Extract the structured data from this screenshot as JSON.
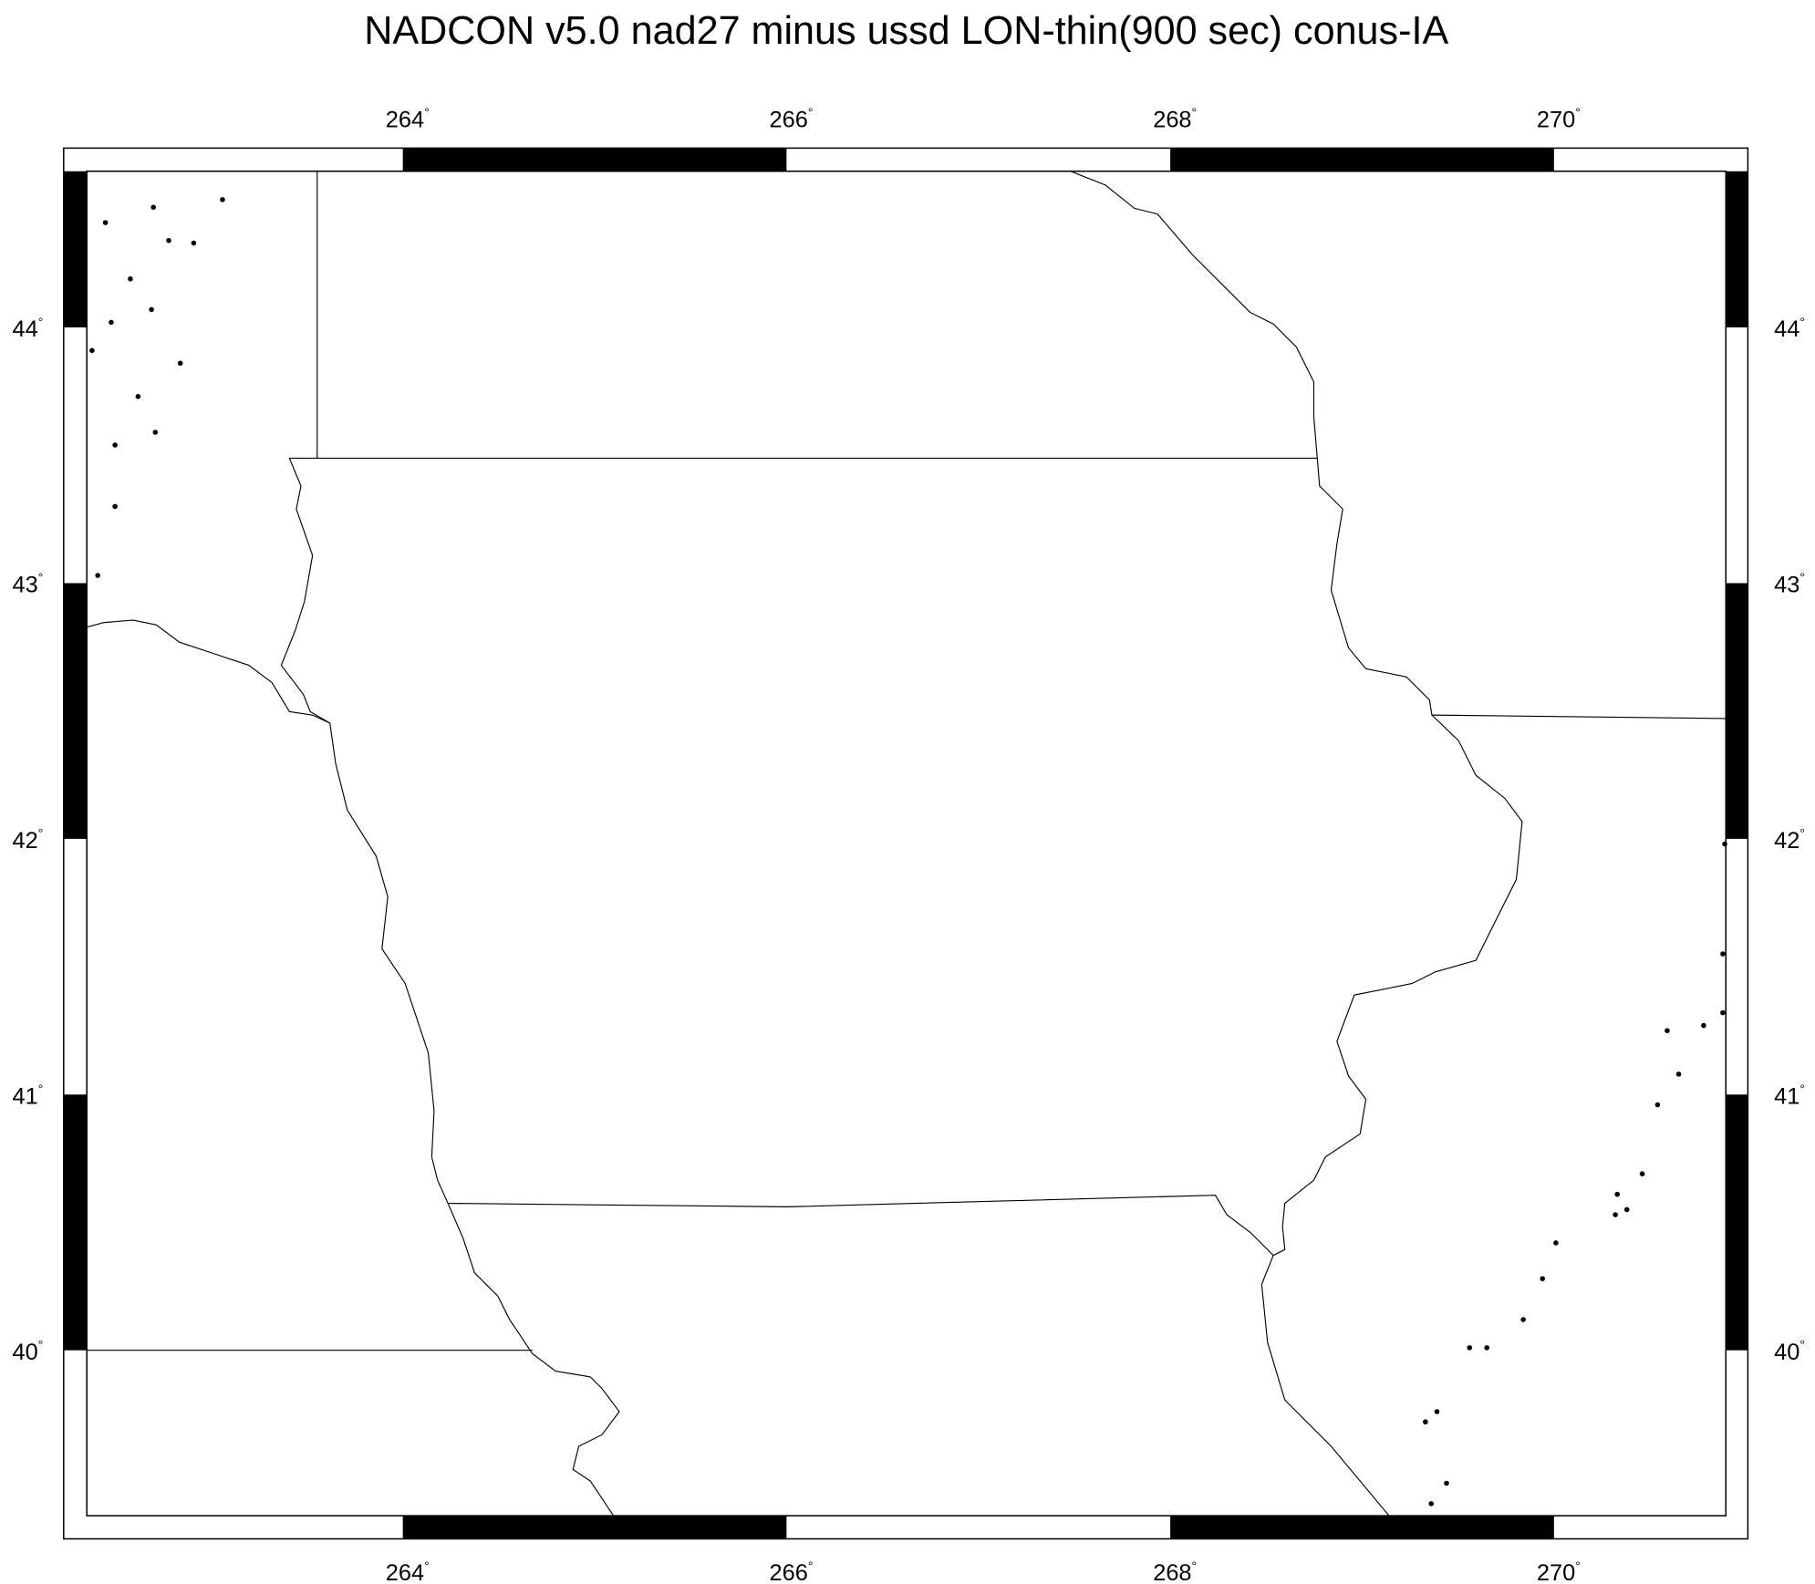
{
  "title": "NADCON v5.0 nad27 minus ussd LON-thin(900 sec) conus-IA",
  "map": {
    "lon_range": [
      262.35,
      270.91
    ],
    "lat_range": [
      39.36,
      44.61
    ],
    "lon_ticks": [
      264,
      266,
      268,
      270
    ],
    "lat_ticks": [
      44,
      43,
      42,
      41,
      40
    ],
    "lon_labels": [
      "264",
      "266",
      "268",
      "270"
    ],
    "lat_labels": [
      "44",
      "43",
      "42",
      "41",
      "40"
    ],
    "degree_symbol": "°",
    "frame_style": "checkered black/white, 1 degree intervals",
    "line_color": "#000000",
    "point_color": "#000000"
  },
  "chart_data": {
    "type": "scatter",
    "title": "NADCON v5.0 nad27 minus ussd LON-thin(900 sec) conus-IA",
    "xlabel": "",
    "ylabel": "",
    "xlim": [
      262.35,
      270.91
    ],
    "ylim": [
      39.36,
      44.61
    ],
    "points": [
      [
        263.06,
        44.5
      ],
      [
        262.45,
        44.41
      ],
      [
        262.7,
        44.47
      ],
      [
        262.78,
        44.34
      ],
      [
        262.91,
        44.33
      ],
      [
        262.58,
        44.19
      ],
      [
        262.69,
        44.07
      ],
      [
        262.48,
        44.02
      ],
      [
        262.38,
        43.91
      ],
      [
        262.84,
        43.86
      ],
      [
        262.62,
        43.73
      ],
      [
        262.71,
        43.59
      ],
      [
        262.5,
        43.54
      ],
      [
        262.5,
        43.3
      ],
      [
        262.41,
        43.03
      ],
      [
        270.89,
        41.98
      ],
      [
        270.88,
        41.55
      ],
      [
        270.88,
        41.32
      ],
      [
        270.59,
        41.25
      ],
      [
        270.78,
        41.27
      ],
      [
        270.65,
        41.08
      ],
      [
        270.54,
        40.96
      ],
      [
        270.46,
        40.69
      ],
      [
        270.33,
        40.61
      ],
      [
        270.38,
        40.55
      ],
      [
        270.32,
        40.53
      ],
      [
        270.01,
        40.42
      ],
      [
        269.94,
        40.28
      ],
      [
        269.84,
        40.12
      ],
      [
        269.56,
        40.01
      ],
      [
        269.65,
        40.01
      ],
      [
        269.39,
        39.76
      ],
      [
        269.33,
        39.72
      ],
      [
        269.44,
        39.48
      ],
      [
        269.36,
        39.4
      ]
    ]
  }
}
